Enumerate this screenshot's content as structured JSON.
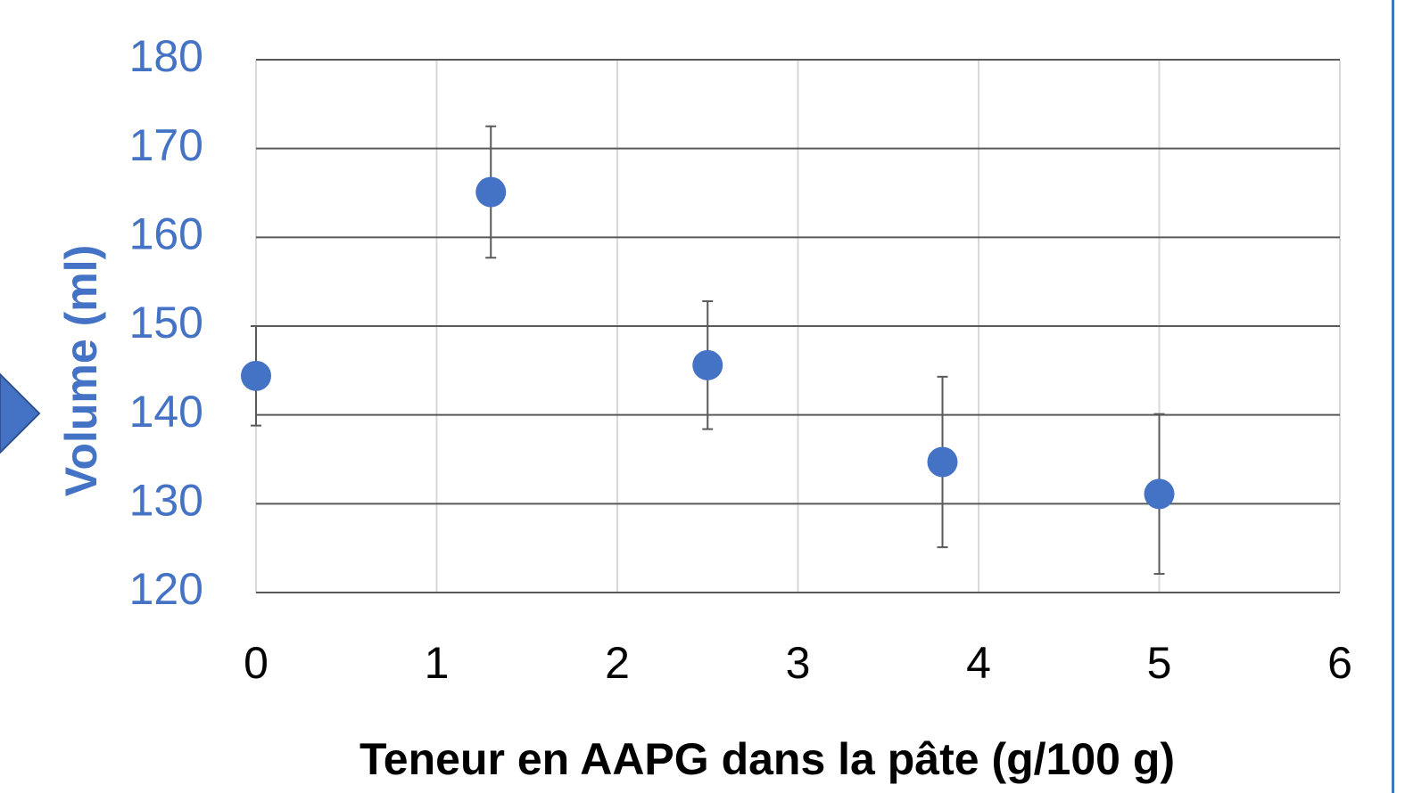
{
  "chart_data": {
    "type": "scatter",
    "x_label": "Teneur en AAPG dans la pâte (g/100 g)",
    "y_label": "Volume (ml)",
    "x": [
      0,
      1.3,
      2.5,
      3.8,
      5
    ],
    "values": [
      144.4,
      165.1,
      145.6,
      134.7,
      131.1
    ],
    "errors": [
      5.6,
      7.4,
      7.2,
      9.6,
      9.0
    ],
    "color": "#4472c4",
    "xlim": [
      0,
      6
    ],
    "xticks": [
      0,
      1,
      2,
      3,
      4,
      5,
      6
    ],
    "ylim": [
      120,
      180
    ],
    "yticks": [
      120,
      130,
      140,
      150,
      160,
      170,
      180
    ],
    "grid": true
  }
}
